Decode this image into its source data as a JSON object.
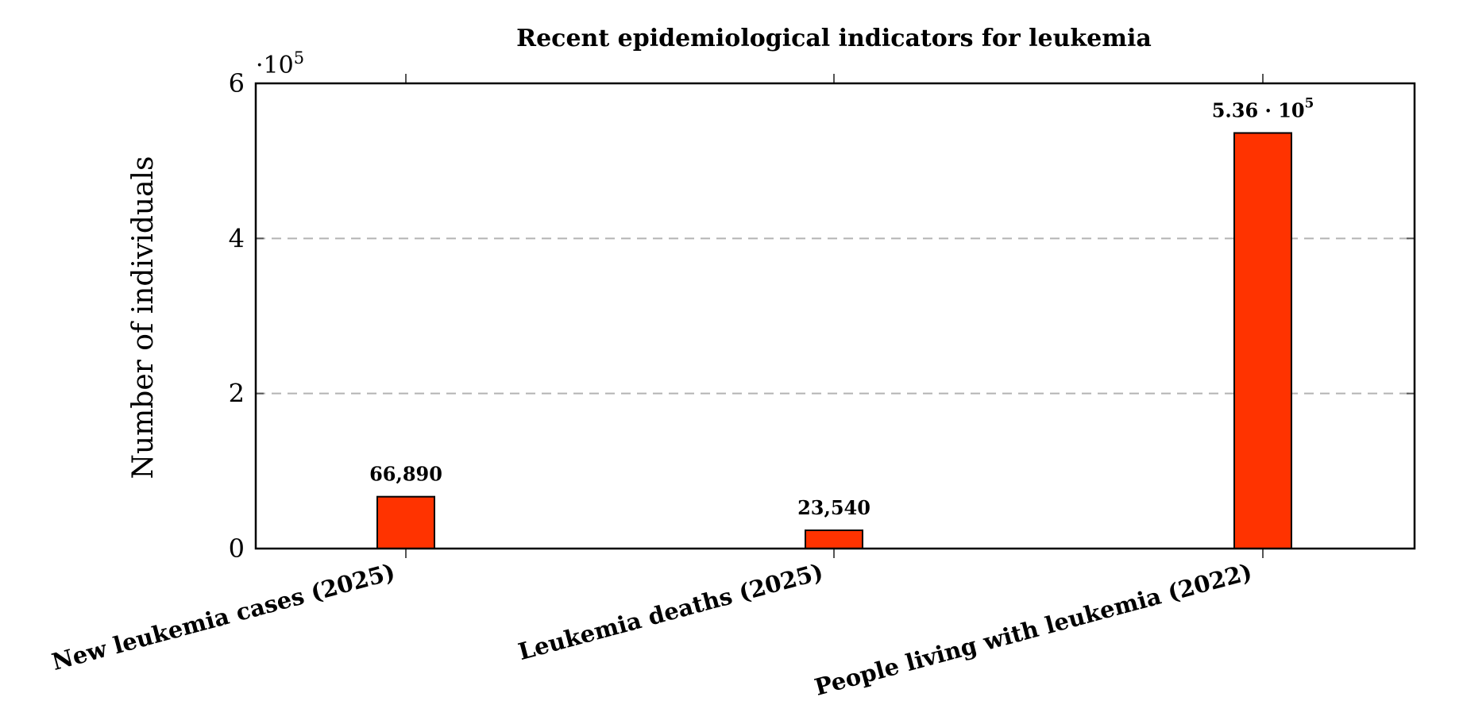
{
  "chart_data": {
    "type": "bar",
    "title": "Recent epidemiological indicators for leukemia",
    "xlabel": "",
    "ylabel": "Number of individuals",
    "categories": [
      "New leukemia cases (2025)",
      "Leukemia deaths (2025)",
      "People living with leukemia (2022)"
    ],
    "values": [
      66890,
      23540,
      536000
    ],
    "data_labels": [
      "66,890",
      "23,540",
      "5.36 · 10^5"
    ],
    "ylim": [
      0,
      600000
    ],
    "y_ticks": [
      0,
      200000,
      400000,
      600000
    ],
    "y_tick_labels": [
      "0",
      "2",
      "4",
      "6"
    ],
    "y_scale_label": "·10^5",
    "grid": "horizontal dashed",
    "bar_color": "#ff3300",
    "legend": "none"
  }
}
